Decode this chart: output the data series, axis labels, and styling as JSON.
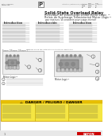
{
  "bg_color": "#ffffff",
  "title_line1": "Solid-State Overload Relay",
  "title_line2": "Relevador de sobrecarga sólido Motor-Logic ™",
  "title_line3": "Relais de Surcharge Transistorisé Motor Logic™",
  "warning_text": "⚠  DANGER / PELIGRO / DANGER",
  "border_color": "#aaaaaa",
  "body_text_color": "#777777",
  "warning_bg": "#f5e642",
  "warning_header_bg": "#e8c000",
  "warning_border": "#d4a000",
  "bottom_bar_color": "#e8e8e8",
  "logo_bg": "#cc0000",
  "header_bg": "#f0f0f0",
  "diagram_bg": "#eeeeee",
  "diagram_border": "#999999",
  "comp_color1": "#bbbbbb",
  "comp_color2": "#999999",
  "screw_color1": "#aaaaaa",
  "screw_color2": "#888888",
  "term_color": "#cccccc",
  "callout_border": "#555555",
  "line_color": "#666666",
  "warn_line_color": "#333333",
  "div_color": "#c0a000"
}
